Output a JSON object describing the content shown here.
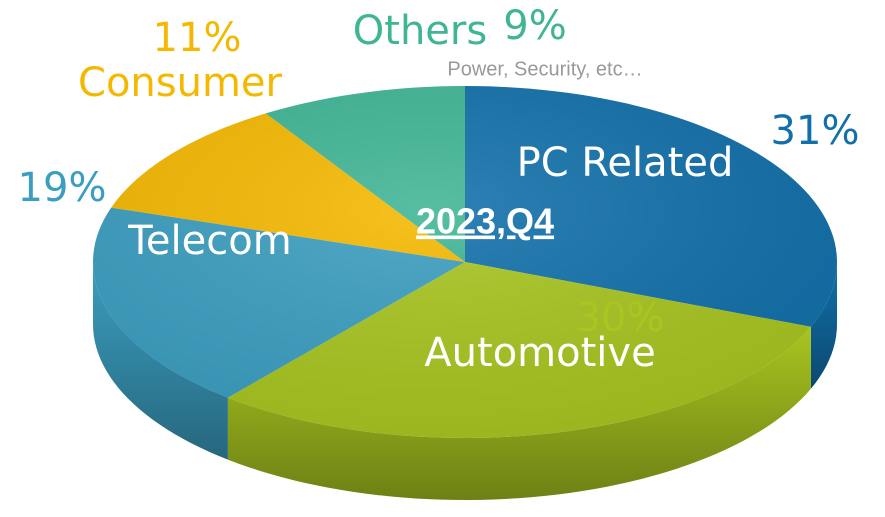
{
  "chart_data": {
    "type": "pie",
    "title": "2023,Q4",
    "annotation": "Power, Security, etc…",
    "categories": [
      "PC Related",
      "Automotive",
      "Telecom",
      "Consumer",
      "Others"
    ],
    "values": [
      31,
      30,
      19,
      11,
      9
    ],
    "value_labels": [
      "31%",
      "30%",
      "19%",
      "11%",
      "9%"
    ],
    "colors": [
      "#1170aa",
      "#a8c520",
      "#3b9ec0",
      "#f5b800",
      "#3fb595"
    ]
  }
}
